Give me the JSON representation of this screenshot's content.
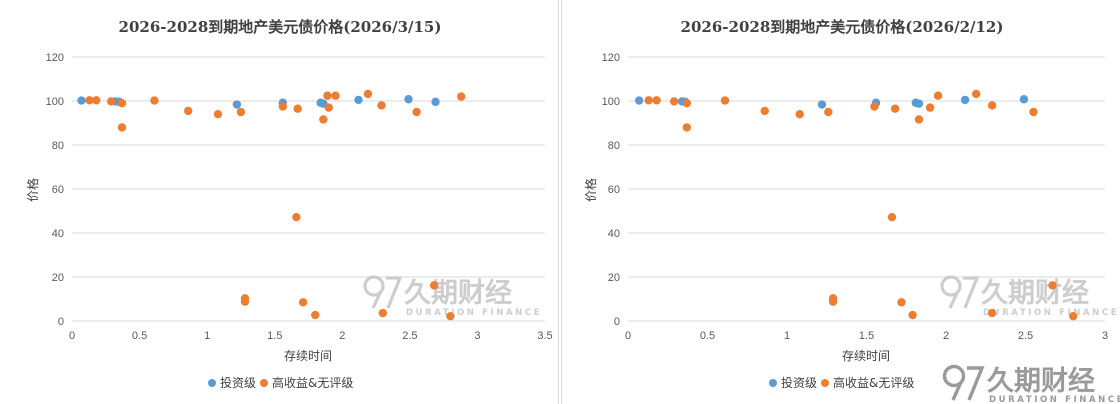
{
  "colors": {
    "investment_grade": "#5B9BD5",
    "high_yield": "#ED7D31",
    "grid": "#d9d9d9",
    "watermark": "#c8c8c8",
    "footer_logo": "#9a9a9a"
  },
  "watermark": {
    "brand": "久期财经",
    "sub": "DURATION FINANCE"
  },
  "footer_logo": {
    "brand": "久期财经",
    "sub": "DURATION FINANCE"
  },
  "chart_data": [
    {
      "type": "scatter",
      "title": "2026-2028到期地产美元债价格(2026/3/15)",
      "xlabel": "存续时间",
      "ylabel": "价格",
      "xlim": [
        0,
        3.5
      ],
      "ylim": [
        0,
        120
      ],
      "x_ticks": [
        "0",
        "0.5",
        "1",
        "1.5",
        "2",
        "2.5",
        "3",
        "3.5"
      ],
      "y_ticks": [
        "0",
        "20",
        "40",
        "60",
        "80",
        "100",
        "120"
      ],
      "grid": "horizontal",
      "legend_position": "bottom",
      "series": [
        {
          "name": "投资级",
          "color_key": "investment_grade",
          "points": [
            [
              0.07,
              100.2
            ],
            [
              0.32,
              99.8
            ],
            [
              0.35,
              99.6
            ],
            [
              1.22,
              98.4
            ],
            [
              1.56,
              99.2
            ],
            [
              1.84,
              99.2
            ],
            [
              1.86,
              98.8
            ],
            [
              2.12,
              100.5
            ],
            [
              2.49,
              100.8
            ],
            [
              2.69,
              99.6
            ]
          ]
        },
        {
          "name": "高收益&无评级",
          "color_key": "high_yield",
          "points": [
            [
              0.13,
              100.3
            ],
            [
              0.18,
              100.3
            ],
            [
              0.29,
              99.8
            ],
            [
              0.37,
              99.0
            ],
            [
              0.37,
              88.0
            ],
            [
              0.61,
              100.2
            ],
            [
              0.86,
              95.5
            ],
            [
              1.08,
              94.0
            ],
            [
              1.25,
              95.0
            ],
            [
              1.28,
              10.3
            ],
            [
              1.28,
              8.8
            ],
            [
              1.56,
              97.5
            ],
            [
              1.66,
              47.2
            ],
            [
              1.67,
              96.5
            ],
            [
              1.71,
              8.5
            ],
            [
              1.8,
              2.7
            ],
            [
              1.86,
              91.6
            ],
            [
              1.89,
              102.4
            ],
            [
              1.9,
              97.0
            ],
            [
              1.95,
              102.4
            ],
            [
              2.19,
              103.2
            ],
            [
              2.29,
              98.0
            ],
            [
              2.3,
              3.6
            ],
            [
              2.55,
              95.0
            ],
            [
              2.68,
              16.2
            ],
            [
              2.8,
              2.2
            ],
            [
              2.88,
              102.0
            ]
          ]
        }
      ]
    },
    {
      "type": "scatter",
      "title": "2026-2028到期地产美元债价格(2026/2/12)",
      "xlabel": "存续时间",
      "ylabel": "价格",
      "xlim": [
        0,
        3
      ],
      "ylim": [
        0,
        120
      ],
      "x_ticks": [
        "0",
        "0.5",
        "1",
        "1.5",
        "2",
        "2.5",
        "3"
      ],
      "y_ticks": [
        "0",
        "20",
        "40",
        "60",
        "80",
        "100",
        "120"
      ],
      "grid": "horizontal",
      "legend_position": "bottom",
      "series": [
        {
          "name": "投资级",
          "color_key": "investment_grade",
          "points": [
            [
              0.07,
              100.2
            ],
            [
              0.34,
              99.8
            ],
            [
              0.36,
              99.6
            ],
            [
              1.22,
              98.4
            ],
            [
              1.56,
              99.2
            ],
            [
              1.81,
              99.2
            ],
            [
              1.83,
              98.8
            ],
            [
              2.12,
              100.5
            ],
            [
              2.49,
              100.8
            ]
          ]
        },
        {
          "name": "高收益&无评级",
          "color_key": "high_yield",
          "points": [
            [
              0.13,
              100.3
            ],
            [
              0.18,
              100.3
            ],
            [
              0.29,
              99.8
            ],
            [
              0.37,
              99.0
            ],
            [
              0.37,
              88.0
            ],
            [
              0.61,
              100.2
            ],
            [
              0.86,
              95.5
            ],
            [
              1.08,
              94.0
            ],
            [
              1.26,
              95.0
            ],
            [
              1.29,
              10.3
            ],
            [
              1.29,
              8.8
            ],
            [
              1.55,
              97.5
            ],
            [
              1.66,
              47.2
            ],
            [
              1.68,
              96.5
            ],
            [
              1.72,
              8.5
            ],
            [
              1.79,
              2.7
            ],
            [
              1.83,
              91.6
            ],
            [
              1.9,
              97.0
            ],
            [
              1.95,
              102.4
            ],
            [
              2.19,
              103.2
            ],
            [
              2.29,
              98.0
            ],
            [
              2.29,
              3.6
            ],
            [
              2.55,
              95.0
            ],
            [
              2.67,
              16.2
            ],
            [
              2.8,
              2.2
            ]
          ]
        }
      ]
    }
  ]
}
